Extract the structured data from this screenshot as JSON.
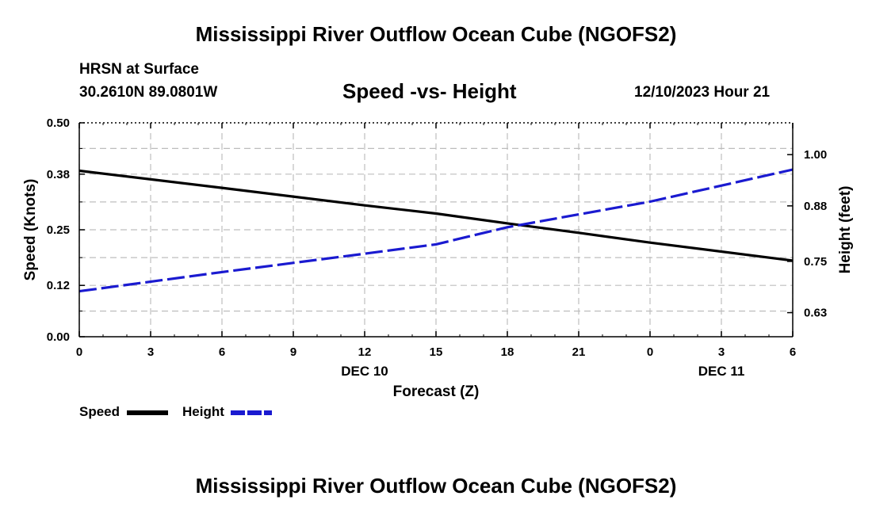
{
  "header": {
    "title": "Mississippi River Outflow Ocean Cube (NGOFS2)",
    "station": "HRSN at Surface",
    "coords": "30.2610N  89.0801W",
    "datetime": "12/10/2023 Hour 21"
  },
  "footer": {
    "title": "Mississippi River Outflow Ocean Cube (NGOFS2)"
  },
  "legend": {
    "speed_label": "Speed",
    "height_label": "Height"
  },
  "colors": {
    "speed": "#000000",
    "height": "#1a1ad0",
    "grid": "#bdbdbd"
  },
  "chart_data": {
    "type": "line",
    "title": "Speed -vs- Height",
    "xlabel": "Forecast (Z)",
    "ylabel": "Speed (Knots)",
    "y2label": "Height (feet)",
    "x_ticks": [
      "0",
      "3",
      "6",
      "9",
      "12",
      "15",
      "18",
      "21",
      "0",
      "3",
      "6"
    ],
    "x_hours": [
      0,
      3,
      6,
      9,
      12,
      15,
      18,
      21,
      24,
      27,
      30
    ],
    "date_labels": [
      {
        "label": "DEC 10",
        "hour": 12
      },
      {
        "label": "DEC 11",
        "hour": 27
      }
    ],
    "xlim": [
      0,
      30
    ],
    "ylim": [
      0.0,
      0.5
    ],
    "y_ticks": [
      0.0,
      0.12,
      0.25,
      0.38,
      0.5
    ],
    "y_tick_labels": [
      "0.00",
      "0.12",
      "0.25",
      "0.38",
      "0.50"
    ],
    "y2lim": [
      0.5736,
      1.0745
    ],
    "y2_ticks": [
      0.63,
      0.75,
      0.88,
      1.0
    ],
    "y2_tick_labels": [
      "0.63",
      "0.75",
      "0.88",
      "1.00"
    ],
    "series": [
      {
        "name": "Speed",
        "axis": "left",
        "style": "solid",
        "x": [
          0,
          6,
          12,
          15,
          18,
          21,
          24,
          30
        ],
        "values": [
          0.388,
          0.348,
          0.307,
          0.288,
          0.265,
          0.243,
          0.22,
          0.178
        ]
      },
      {
        "name": "Height",
        "axis": "right",
        "style": "dashed",
        "x": [
          0,
          6,
          12,
          15,
          18,
          21,
          24,
          30
        ],
        "values": [
          0.68,
          0.725,
          0.768,
          0.79,
          0.83,
          0.86,
          0.89,
          0.965
        ]
      }
    ]
  }
}
